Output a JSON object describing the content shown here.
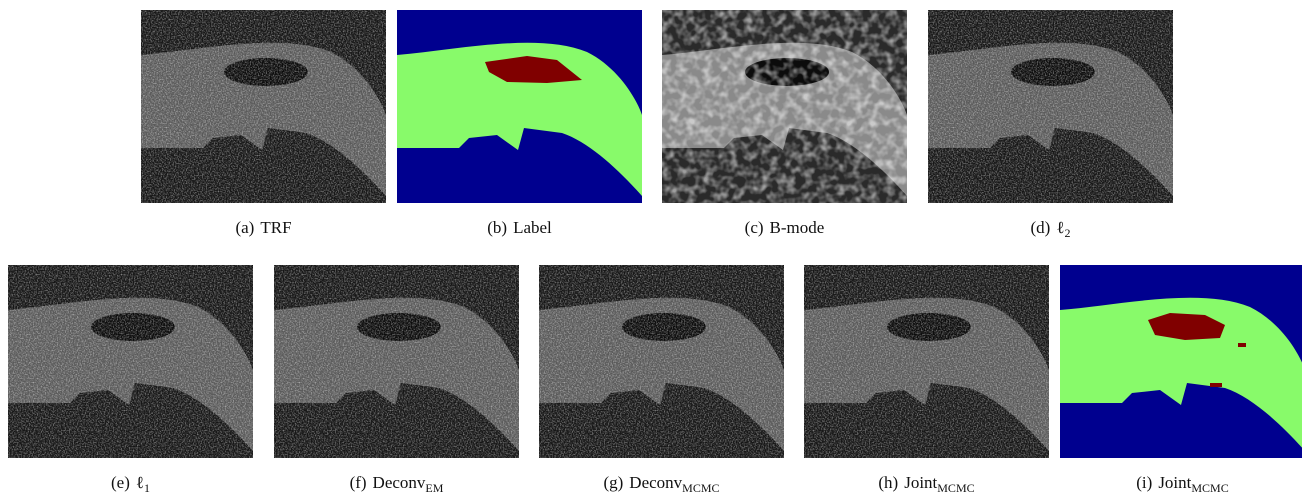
{
  "panels": [
    {
      "tag": "(a)",
      "name": "TRF"
    },
    {
      "tag": "(b)",
      "name": "Label"
    },
    {
      "tag": "(c)",
      "name": "B-mode"
    },
    {
      "tag": "(d)",
      "name": "ℓ",
      "sub": "2"
    },
    {
      "tag": "(e)",
      "name": "ℓ",
      "sub": "1"
    },
    {
      "tag": "(f)",
      "name": "Deconv",
      "sub": "EM"
    },
    {
      "tag": "(g)",
      "name": "Deconv",
      "sub": "MCMC"
    },
    {
      "tag": "(h)",
      "name": "Joint",
      "sub": "MCMC"
    },
    {
      "tag": "(i)",
      "name": "Joint",
      "sub": "MCMC"
    }
  ]
}
